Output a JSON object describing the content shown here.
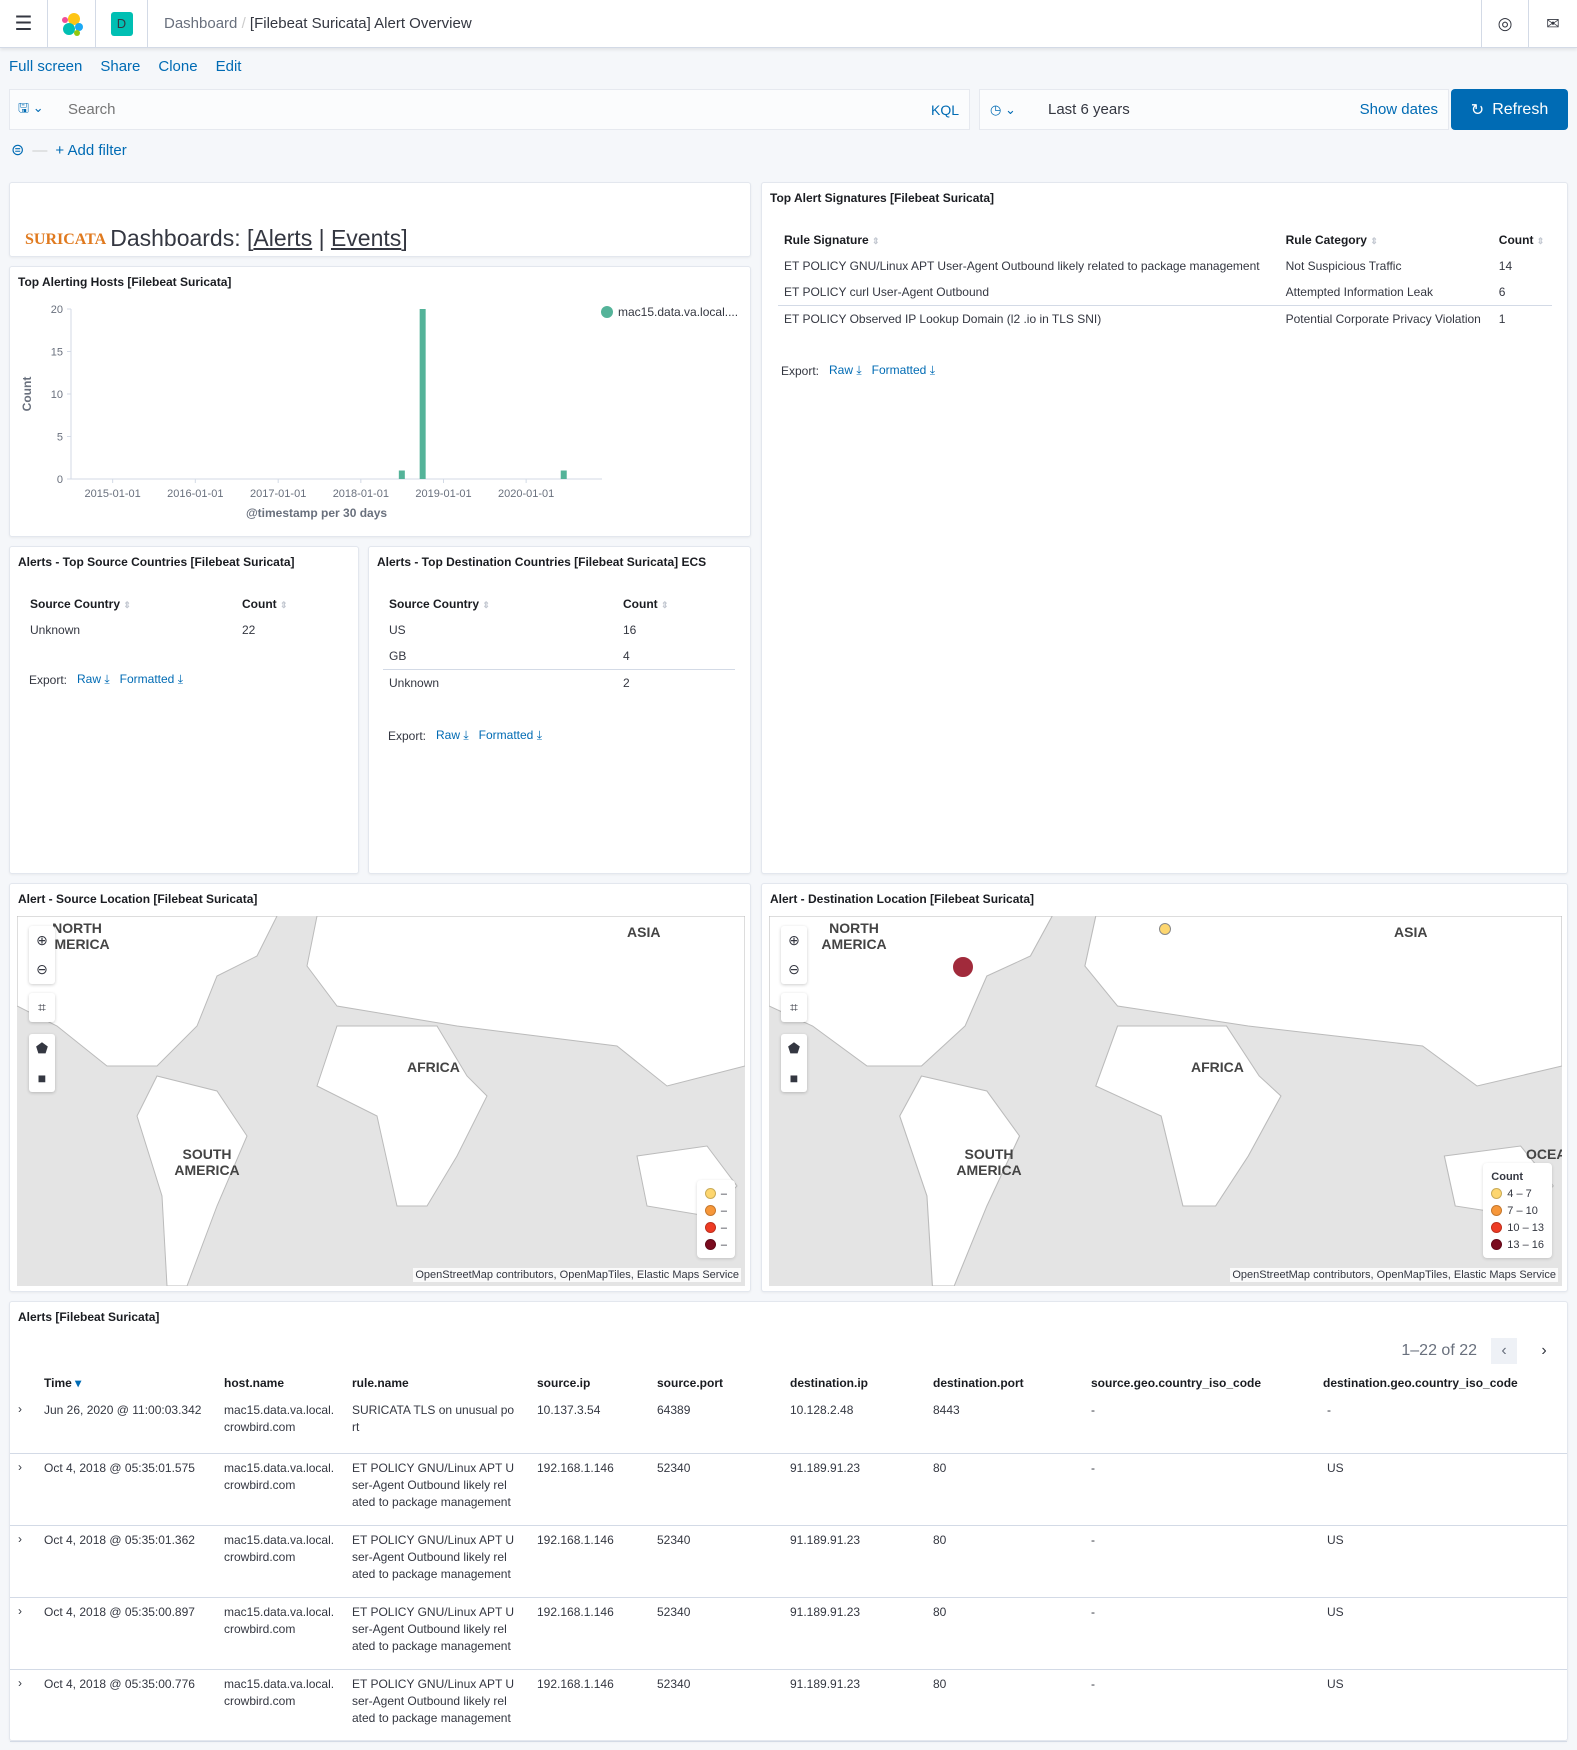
{
  "header": {
    "app_initial": "D",
    "breadcrumb_root": "Dashboard",
    "breadcrumb_current": "[Filebeat Suricata] Alert Overview"
  },
  "toplinks": [
    "Full screen",
    "Share",
    "Clone",
    "Edit"
  ],
  "search": {
    "placeholder": "Search",
    "language": "KQL"
  },
  "time": {
    "range": "Last 6 years",
    "show_dates": "Show dates",
    "refresh": "Refresh"
  },
  "filter": {
    "add": "+ Add filter"
  },
  "markdown": {
    "logo": "SURICATA",
    "prefix": "Dashboards: [",
    "alerts": "Alerts",
    "sep": " | ",
    "events": "Events",
    "suffix": "]"
  },
  "hosts_panel": {
    "title": "Top Alerting Hosts [Filebeat Suricata]"
  },
  "chart_data": {
    "type": "bar",
    "title": "Top Alerting Hosts [Filebeat Suricata]",
    "xlabel": "@timestamp per 30 days",
    "ylabel": "Count",
    "ylim": [
      0,
      20
    ],
    "yticks": [
      0,
      5,
      10,
      15,
      20
    ],
    "xticks": [
      "2015-01-01",
      "2016-01-01",
      "2017-01-01",
      "2018-01-01",
      "2019-01-01",
      "2020-01-01"
    ],
    "xlim": [
      "2014-07-01",
      "2020-12-01"
    ],
    "legend_position": "top-right",
    "series": [
      {
        "name": "mac15.data.va.local....",
        "color": "#54b399",
        "points": [
          {
            "x": "2018-07-01",
            "y": 1
          },
          {
            "x": "2018-10-01",
            "y": 20
          },
          {
            "x": "2020-06-15",
            "y": 1
          }
        ]
      }
    ]
  },
  "signatures": {
    "title": "Top Alert Signatures [Filebeat Suricata]",
    "columns": [
      "Rule Signature",
      "Rule Category",
      "Count"
    ],
    "rows": [
      [
        "ET POLICY GNU/Linux APT User-Agent Outbound likely related to package management",
        "Not Suspicious Traffic",
        "14"
      ],
      [
        "ET POLICY curl User-Agent Outbound",
        "Attempted Information Leak",
        "6"
      ],
      [
        "ET POLICY Observed IP Lookup Domain (l2 .io in TLS SNI)",
        "Potential Corporate Privacy Violation",
        "1"
      ]
    ],
    "export": "Export:",
    "raw": "Raw",
    "formatted": "Formatted"
  },
  "src_countries": {
    "title": "Alerts - Top Source Countries [Filebeat Suricata]",
    "columns": [
      "Source Country",
      "Count"
    ],
    "rows": [
      [
        "Unknown",
        "22"
      ]
    ],
    "export": "Export:",
    "raw": "Raw",
    "formatted": "Formatted"
  },
  "dst_countries": {
    "title": "Alerts - Top Destination Countries [Filebeat Suricata] ECS",
    "columns": [
      "Source Country",
      "Count"
    ],
    "rows": [
      [
        "US",
        "16"
      ],
      [
        "GB",
        "4"
      ],
      [
        "Unknown",
        "2"
      ]
    ],
    "export": "Export:",
    "raw": "Raw",
    "formatted": "Formatted"
  },
  "src_map": {
    "title": "Alert - Source Location [Filebeat Suricata]",
    "legend": [
      "–",
      "–",
      "–",
      "–"
    ],
    "attribution": "OpenStreetMap contributors, OpenMapTiles, Elastic Maps Service",
    "labels": [
      "NORTH AMERICA",
      "ASIA",
      "AFRICA",
      "SOUTH AMERICA"
    ]
  },
  "dst_map": {
    "title": "Alert - Destination Location [Filebeat Suricata]",
    "legend_title": "Count",
    "legend": [
      "4 – 7",
      "7 – 10",
      "10 – 13",
      "13 – 16"
    ],
    "attribution": "OpenStreetMap contributors, OpenMapTiles, Elastic Maps Service",
    "labels": [
      "NORTH AMERICA",
      "ASIA",
      "AFRICA",
      "SOUTH AMERICA",
      "OCEA"
    ]
  },
  "legend_colors": [
    "#fdd66f",
    "#f7973a",
    "#ee3b24",
    "#7a0b1e"
  ],
  "alerts": {
    "title": "Alerts [Filebeat Suricata]",
    "pagination": "1–22 of 22",
    "columns": [
      "Time",
      "host.name",
      "rule.name",
      "source.ip",
      "source.port",
      "destination.ip",
      "destination.port",
      "source.geo.country_iso_code",
      "destination.geo.country_iso_code"
    ],
    "rows": [
      [
        "Jun 26, 2020 @ 11:00:03.342",
        "mac15.data.va.local.\ncrowbird.com",
        "SURICATA TLS on unusual po\nrt",
        "10.137.3.54",
        "64389",
        "10.128.2.48",
        "8443",
        "-",
        "-"
      ],
      [
        "Oct 4, 2018 @ 05:35:01.575",
        "mac15.data.va.local.\ncrowbird.com",
        "ET POLICY GNU/Linux APT U\nser-Agent Outbound likely rel\nated to package management",
        "192.168.1.146",
        "52340",
        "91.189.91.23",
        "80",
        "-",
        "US"
      ],
      [
        "Oct 4, 2018 @ 05:35:01.362",
        "mac15.data.va.local.\ncrowbird.com",
        "ET POLICY GNU/Linux APT U\nser-Agent Outbound likely rel\nated to package management",
        "192.168.1.146",
        "52340",
        "91.189.91.23",
        "80",
        "-",
        "US"
      ],
      [
        "Oct 4, 2018 @ 05:35:00.897",
        "mac15.data.va.local.\ncrowbird.com",
        "ET POLICY GNU/Linux APT U\nser-Agent Outbound likely rel\nated to package management",
        "192.168.1.146",
        "52340",
        "91.189.91.23",
        "80",
        "-",
        "US"
      ],
      [
        "Oct 4, 2018 @ 05:35:00.776",
        "mac15.data.va.local.\ncrowbird.com",
        "ET POLICY GNU/Linux APT U\nser-Agent Outbound likely rel\nated to package management",
        "192.168.1.146",
        "52340",
        "91.189.91.23",
        "80",
        "-",
        "US"
      ]
    ]
  }
}
